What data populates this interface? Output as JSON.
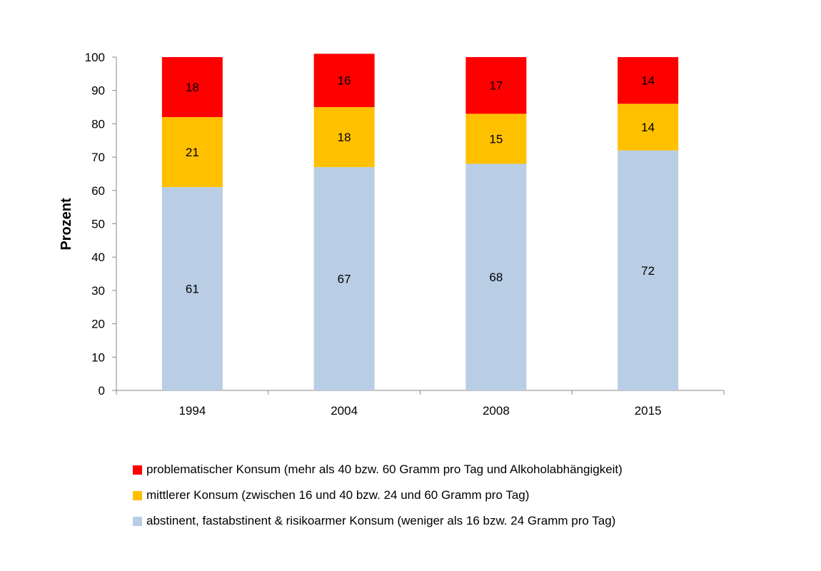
{
  "chart_data": {
    "type": "bar",
    "stacked": true,
    "categories": [
      "1994",
      "2004",
      "2008",
      "2015"
    ],
    "series": [
      {
        "name": "abstinent, fastabstinent & risikoarmer Konsum (weniger als 16 bzw. 24 Gramm pro Tag)",
        "color": "#b9cde5",
        "values": [
          61,
          67,
          68,
          72
        ]
      },
      {
        "name": "mittlerer Konsum (zwischen 16 und 40 bzw. 24 und 60 Gramm pro Tag)",
        "color": "#ffc000",
        "values": [
          21,
          18,
          15,
          14
        ]
      },
      {
        "name": "problematischer Konsum (mehr als 40 bzw. 60 Gramm pro Tag und Alkoholabhängigkeit)",
        "color": "#ff0000",
        "values": [
          18,
          16,
          17,
          14
        ]
      }
    ],
    "ylabel": "Prozent",
    "xlabel": "",
    "ylim": [
      0,
      100
    ],
    "yticks": [
      "0",
      "10",
      "20",
      "30",
      "40",
      "50",
      "60",
      "70",
      "80",
      "90",
      "100"
    ],
    "grid": false,
    "data_labels": true,
    "legend_position": "bottom",
    "legend_order": [
      2,
      1,
      0
    ]
  }
}
